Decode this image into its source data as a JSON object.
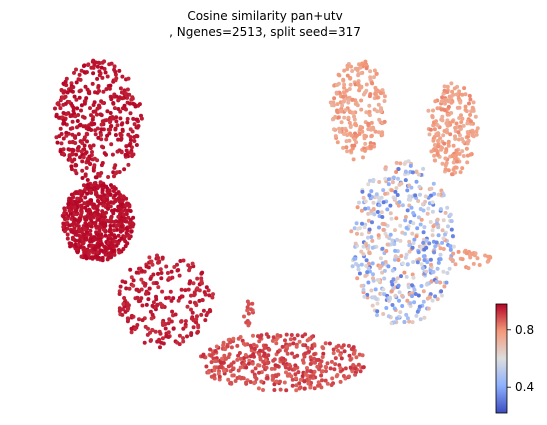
{
  "chart_data": {
    "type": "scatter",
    "title_line1": "Cosine similarity pan+utv",
    "title_line2": ", Ngenes=2513, split seed=317",
    "xlabel": "",
    "ylabel": "",
    "axes_visible": false,
    "grid": false,
    "legend": "colorbar-right",
    "colormap": "coolwarm",
    "color_range": [
      0.22,
      0.98
    ],
    "colorbar_ticks": [
      {
        "value": 0.8,
        "label": "0.8"
      },
      {
        "value": 0.4,
        "label": "0.4"
      }
    ],
    "regions": [
      {
        "name": "left-lobe-top",
        "x": [
          0.6,
          2.8
        ],
        "y": [
          6.0,
          9.4
        ],
        "value_range": [
          0.94,
          0.98
        ],
        "n": 420
      },
      {
        "name": "left-lobe-dense",
        "x": [
          0.8,
          2.6
        ],
        "y": [
          3.8,
          6.0
        ],
        "value_range": [
          0.95,
          0.98
        ],
        "n": 650
      },
      {
        "name": "left-tail",
        "x": [
          2.2,
          4.6
        ],
        "y": [
          1.4,
          4.0
        ],
        "value_range": [
          0.92,
          0.97
        ],
        "n": 260
      },
      {
        "name": "bottom-arc",
        "x": [
          4.2,
          8.4
        ],
        "y": [
          0.2,
          1.8
        ],
        "value_range": [
          0.85,
          0.93
        ],
        "n": 420
      },
      {
        "name": "small-stub",
        "x": [
          5.3,
          5.6
        ],
        "y": [
          2.0,
          2.8
        ],
        "value_range": [
          0.86,
          0.9
        ],
        "n": 14
      },
      {
        "name": "right-arm-top",
        "x": [
          7.5,
          8.9
        ],
        "y": [
          6.6,
          9.4
        ],
        "value_range": [
          0.72,
          0.82
        ],
        "n": 240
      },
      {
        "name": "right-arm-side",
        "x": [
          9.9,
          11.2
        ],
        "y": [
          6.2,
          8.8
        ],
        "value_range": [
          0.72,
          0.82
        ],
        "n": 220
      },
      {
        "name": "right-core",
        "x": [
          8.0,
          10.6
        ],
        "y": [
          2.0,
          6.6
        ],
        "value_range": [
          0.3,
          0.8
        ],
        "n": 520
      },
      {
        "name": "right-tail",
        "x": [
          10.4,
          11.6
        ],
        "y": [
          3.6,
          4.1
        ],
        "value_range": [
          0.74,
          0.8
        ],
        "n": 30
      }
    ]
  }
}
